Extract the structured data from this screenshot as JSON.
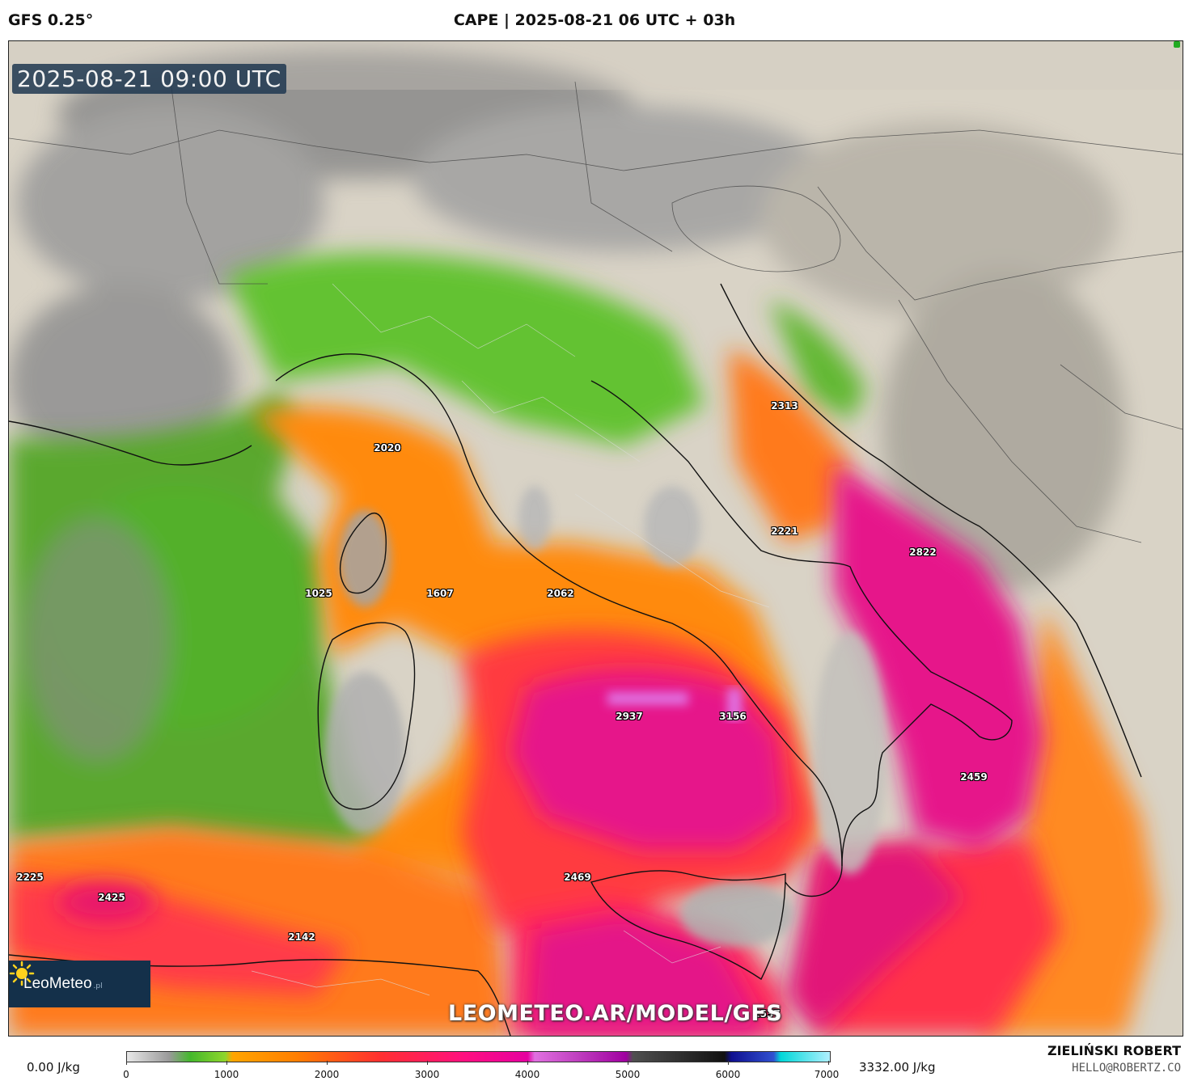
{
  "header": {
    "model": "GFS 0.25°",
    "title": "CAPE | 2025-08-21 06 UTC + 03h"
  },
  "map": {
    "timestamp": "2025-08-21 09:00 UTC",
    "watermark": "LEOMETEO.AR/MODEL/GFS",
    "logo": {
      "name": "LeoMeteo",
      "suffix": ".pl",
      "icon": "sun-logo-icon"
    },
    "value_labels": [
      {
        "value": "2313"
      },
      {
        "value": "2020"
      },
      {
        "value": "2221"
      },
      {
        "value": "2822"
      },
      {
        "value": "1025"
      },
      {
        "value": "1607"
      },
      {
        "value": "2062"
      },
      {
        "value": "2937"
      },
      {
        "value": "3156"
      },
      {
        "value": "2459"
      },
      {
        "value": "2225"
      },
      {
        "value": "2425"
      },
      {
        "value": "2469"
      },
      {
        "value": "2142"
      },
      {
        "value": "2537"
      }
    ],
    "colors": {
      "sea_low": "#4aa82a",
      "cape_mid": "#ff7a00",
      "cape_high": "#ff2a50",
      "cape_very_high": "#e6168a",
      "land": "#d8d2c6"
    }
  },
  "legend": {
    "min_label": "0.00 J/kg",
    "max_label": "3332.00 J/kg",
    "ticks": [
      "0",
      "1000",
      "2000",
      "3000",
      "4000",
      "5000",
      "6000",
      "7000"
    ]
  },
  "credits": {
    "author": "ZIELIŃSKI ROBERT",
    "email": "HELLO@ROBERTZ.CO"
  }
}
